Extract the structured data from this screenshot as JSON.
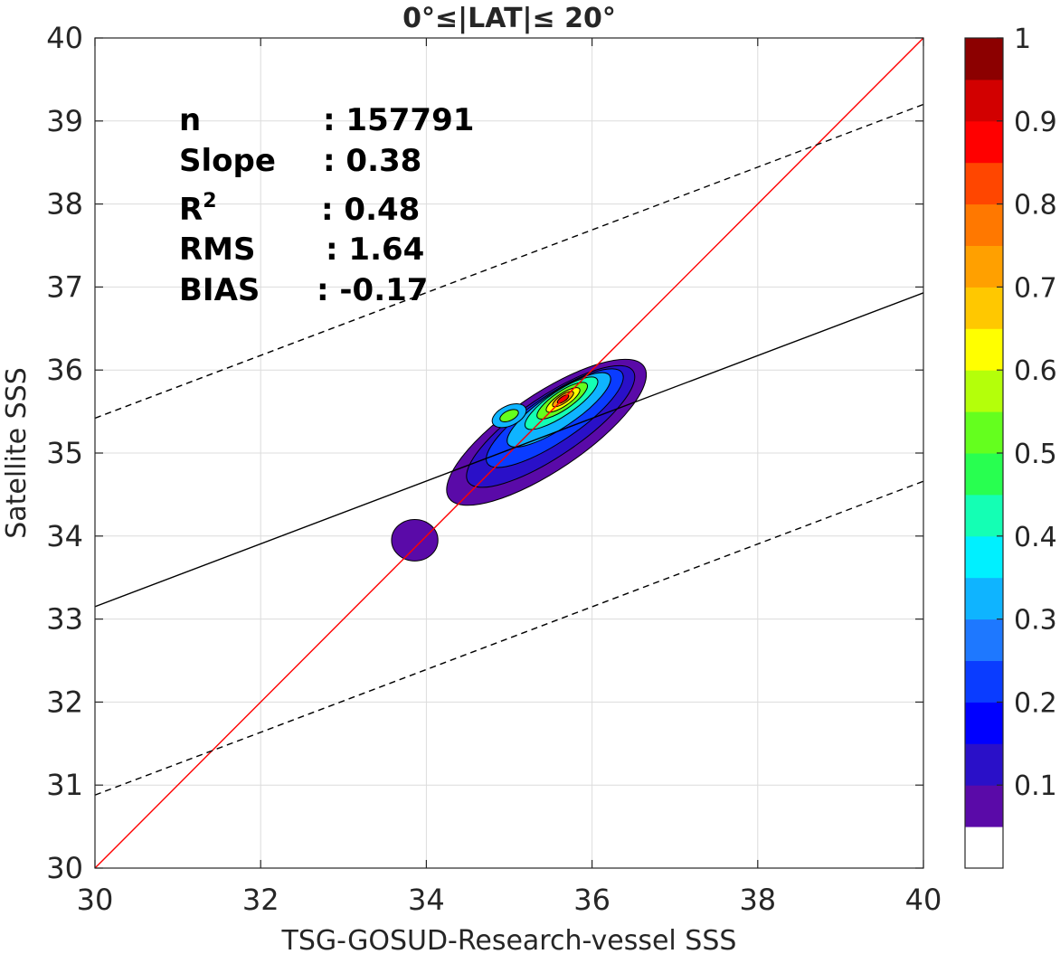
{
  "chart_data": {
    "type": "contour",
    "title": "0°≤|LAT|≤ 20°",
    "xlabel": "TSG-GOSUD-Research-vessel SSS",
    "ylabel": "Satellite SSS",
    "xlim": [
      30,
      40
    ],
    "ylim": [
      30,
      40
    ],
    "xticks": [
      "30",
      "32",
      "34",
      "36",
      "38",
      "40"
    ],
    "yticks": [
      "30",
      "31",
      "32",
      "33",
      "34",
      "35",
      "36",
      "37",
      "38",
      "39",
      "40"
    ],
    "grid": true,
    "stats": {
      "n_label": "n",
      "n_value": ": 157791",
      "slope_label": "Slope",
      "slope_value": ": 0.38",
      "r2_label_base": "R",
      "r2_label_sup": "2",
      "r2_value": ": 0.48",
      "rms_label": "RMS",
      "rms_value": ": 1.64",
      "bias_label": "BIAS",
      "bias_value": ": -0.17"
    },
    "lines": [
      {
        "name": "one-to-one",
        "style": "solid",
        "color": "#ff0000",
        "x": [
          30,
          40
        ],
        "y": [
          30,
          40
        ]
      },
      {
        "name": "regression",
        "style": "solid",
        "color": "#000000",
        "x": [
          30,
          40
        ],
        "y": [
          33.15,
          36.93
        ]
      },
      {
        "name": "regression-plus",
        "style": "dashed",
        "color": "#000000",
        "x": [
          30,
          40
        ],
        "y": [
          35.42,
          39.2
        ]
      },
      {
        "name": "regression-minus",
        "style": "dashed",
        "color": "#000000",
        "x": [
          30,
          40
        ],
        "y": [
          30.88,
          34.66
        ]
      }
    ],
    "density_peak": {
      "x": 35.65,
      "y": 35.65
    },
    "colorbar": {
      "ticks": [
        "0.1",
        "0.2",
        "0.3",
        "0.4",
        "0.5",
        "0.6",
        "0.7",
        "0.8",
        "0.9",
        "1"
      ],
      "colors": [
        "#ffffff",
        "#5a0aa8",
        "#2a10c8",
        "#0000ff",
        "#0a3cff",
        "#1e78ff",
        "#0fb4ff",
        "#00f0ff",
        "#14ffb4",
        "#28ff50",
        "#64ff1e",
        "#b4ff0a",
        "#ffff00",
        "#ffc800",
        "#ffa000",
        "#ff7800",
        "#ff4600",
        "#ff0000",
        "#d20000",
        "#8c0000"
      ]
    }
  }
}
